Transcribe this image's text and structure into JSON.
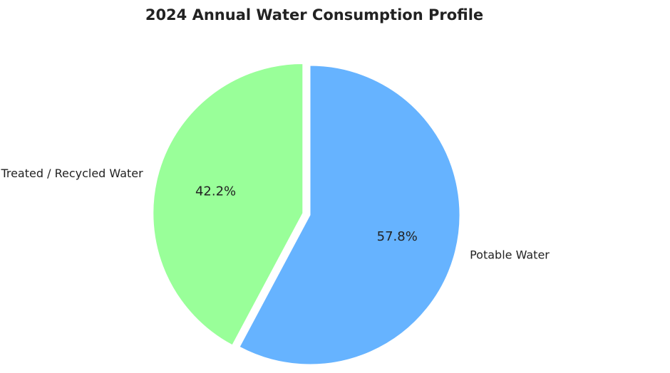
{
  "chart_data": {
    "type": "pie",
    "title": "2024 Annual Water Consumption Profile",
    "start_angle_deg": 90,
    "direction": "counterclockwise",
    "slices": [
      {
        "label": "Treated / Recycled Water",
        "value": 42.2,
        "percent_label": "42.2%",
        "color": "#99ff99",
        "exploded": true
      },
      {
        "label": "Potable Water",
        "value": 57.8,
        "percent_label": "57.8%",
        "color": "#66b3ff",
        "exploded": false
      }
    ],
    "background_color": "#ffffff",
    "text_color": "#222222"
  }
}
